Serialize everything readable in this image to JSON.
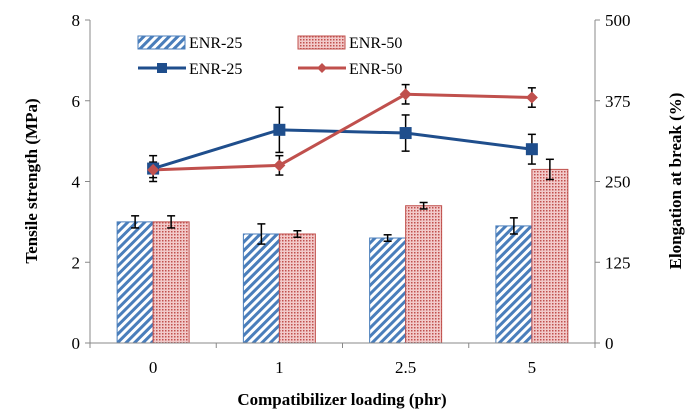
{
  "chart_data": {
    "type": "bar+line",
    "categories": [
      "0",
      "1",
      "2.5",
      "5"
    ],
    "xlabel": "Compatibilizer loading (phr)",
    "ylabel_left": "Tensile strength (MPa)",
    "ylabel_right": "Elongation at break  (%)",
    "ylim_left": [
      0,
      8
    ],
    "yticks_left": [
      "0",
      "2",
      "4",
      "6",
      "8"
    ],
    "ylim_right": [
      0,
      500
    ],
    "yticks_right": [
      "0",
      "125",
      "250",
      "375",
      "500"
    ],
    "grid": false,
    "legend_placement": "top-center",
    "bar_series": [
      {
        "name": "ENR-25",
        "axis": "left",
        "pattern": "diagonal-stripes",
        "color": "#4a7ebb",
        "values": [
          3.0,
          2.7,
          2.6,
          2.9
        ],
        "errors": [
          0.15,
          0.25,
          0.08,
          0.2
        ]
      },
      {
        "name": "ENR-50",
        "axis": "left",
        "pattern": "dots",
        "color": "#c0504d",
        "values": [
          3.0,
          2.7,
          3.4,
          4.3
        ],
        "errors": [
          0.15,
          0.08,
          0.08,
          0.25
        ]
      }
    ],
    "line_series": [
      {
        "name": "ENR-25",
        "axis": "right",
        "marker": "square",
        "color": "#1f4e8c",
        "values": [
          270,
          330,
          325,
          300
        ],
        "errors": [
          20,
          35,
          28,
          23
        ]
      },
      {
        "name": "ENR-50",
        "axis": "right",
        "marker": "diamond",
        "color": "#c0504d",
        "values": [
          268,
          275,
          385,
          380
        ],
        "errors": [
          12,
          15,
          15,
          15
        ]
      }
    ]
  }
}
